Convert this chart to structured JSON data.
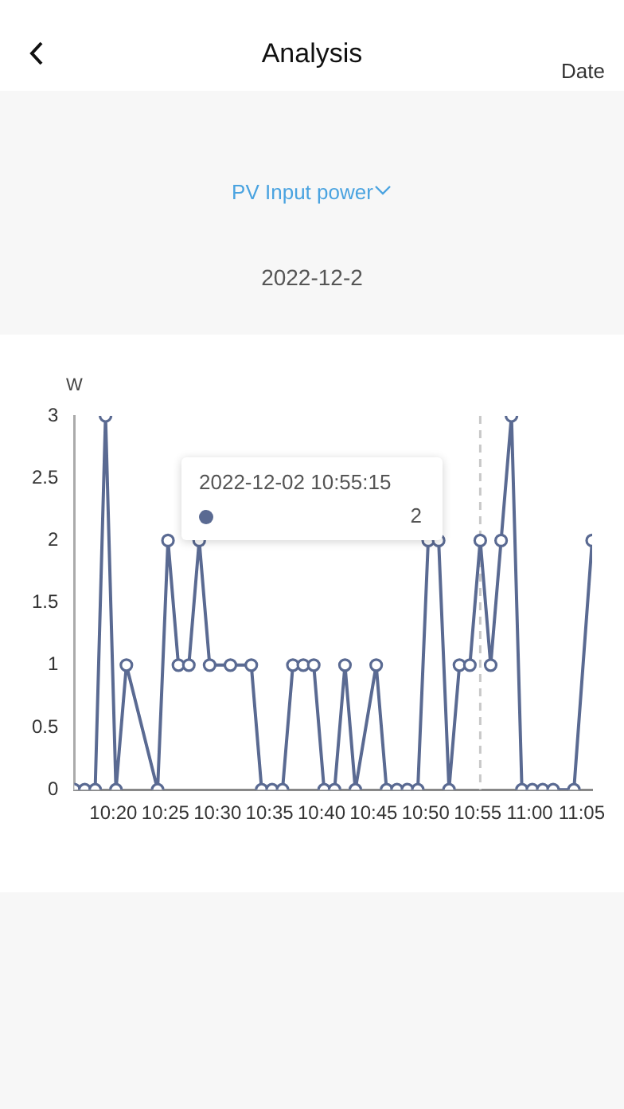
{
  "chart_data": {
    "type": "line",
    "title": "PV Input power",
    "subtitle": "2022-12-2",
    "ylabel": "W",
    "annotations": [
      "Analysis",
      "Date",
      "2022-12-02 10:55:15",
      "2"
    ],
    "x": [
      10.2708,
      10.2875,
      10.3042,
      10.3208,
      10.3375,
      10.3542,
      10.4042,
      10.4208,
      10.4375,
      10.4542,
      10.4708,
      10.4875,
      10.5208,
      10.5542,
      10.5708,
      10.5875,
      10.6042,
      10.6208,
      10.6375,
      10.6542,
      10.6708,
      10.6875,
      10.7042,
      10.7208,
      10.7542,
      10.7708,
      10.7875,
      10.8042,
      10.8208,
      10.8375,
      10.8542,
      10.8708,
      10.8875,
      10.9042,
      10.9208,
      10.9375,
      10.9542,
      10.9708,
      10.9875,
      11.0042,
      11.0208,
      11.0375,
      11.0708,
      11.1
    ],
    "series": [
      {
        "color": "#5a6a92",
        "values": [
          0,
          0,
          0,
          3,
          0,
          1,
          0,
          2,
          1,
          1,
          2,
          1,
          1,
          1,
          0,
          0,
          0,
          1,
          1,
          1,
          0,
          0,
          1,
          0,
          1,
          0,
          0,
          0,
          0,
          2,
          2,
          0,
          1,
          1,
          2,
          1,
          2,
          3,
          0,
          0,
          0,
          0,
          0,
          2
        ]
      }
    ],
    "xlim": [
      10.2708,
      11.1
    ],
    "xticks": [
      {
        "value": 10.3333,
        "label": "10:20"
      },
      {
        "value": 10.4167,
        "label": "10:25"
      },
      {
        "value": 10.5,
        "label": "10:30"
      },
      {
        "value": 10.5833,
        "label": "10:35"
      },
      {
        "value": 10.6667,
        "label": "10:40"
      },
      {
        "value": 10.75,
        "label": "10:45"
      },
      {
        "value": 10.8333,
        "label": "10:50"
      },
      {
        "value": 10.9167,
        "label": "10:55"
      },
      {
        "value": 11,
        "label": "11:00"
      },
      {
        "value": 11.0833,
        "label": "11:05"
      }
    ],
    "ylim": [
      0,
      3
    ],
    "yticks": [
      0,
      0.5,
      1,
      1.5,
      2,
      2.5,
      3
    ],
    "ref_lines": [
      {
        "axis": "x",
        "value": 10.9208,
        "color": "#c8c8c8",
        "line_style": "dashed"
      }
    ],
    "grid": false,
    "legend": false,
    "marker": "circle",
    "line_style": "solid"
  }
}
